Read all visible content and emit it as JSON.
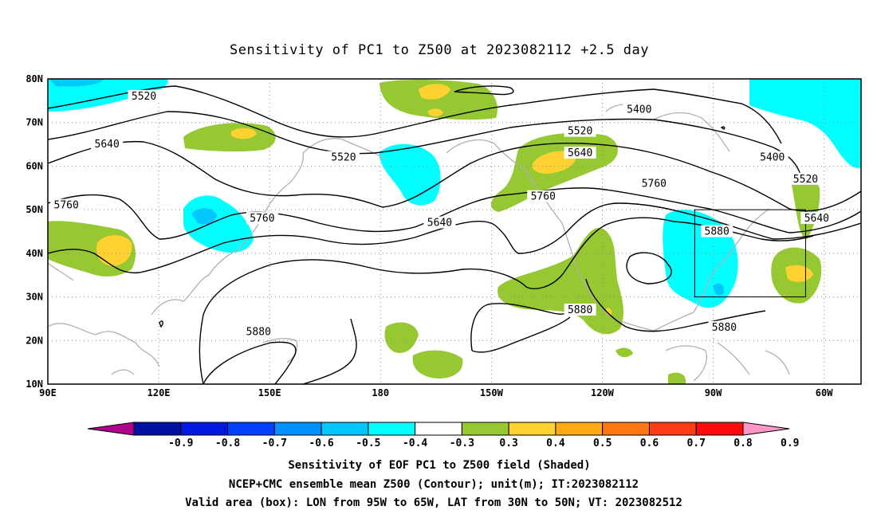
{
  "title": "Sensitivity of PC1 to Z500 at 2023082112 +2.5 day",
  "map": {
    "lon_range": [
      90,
      310
    ],
    "lat_range": [
      10,
      80
    ],
    "x_ticks": [
      {
        "lon": 90,
        "label": "90E"
      },
      {
        "lon": 120,
        "label": "120E"
      },
      {
        "lon": 150,
        "label": "150E"
      },
      {
        "lon": 180,
        "label": "180"
      },
      {
        "lon": 210,
        "label": "150W"
      },
      {
        "lon": 240,
        "label": "120W"
      },
      {
        "lon": 270,
        "label": "90W"
      },
      {
        "lon": 300,
        "label": "60W"
      }
    ],
    "y_ticks": [
      {
        "lat": 10,
        "label": "10N"
      },
      {
        "lat": 20,
        "label": "20N"
      },
      {
        "lat": 30,
        "label": "30N"
      },
      {
        "lat": 40,
        "label": "40N"
      },
      {
        "lat": 50,
        "label": "50N"
      },
      {
        "lat": 60,
        "label": "60N"
      },
      {
        "lat": 70,
        "label": "70N"
      },
      {
        "lat": 80,
        "label": "80N"
      }
    ],
    "grid_dotted": true,
    "valid_box": {
      "lon_min": 265,
      "lon_max": 295,
      "lat_min": 30,
      "lat_max": 50
    },
    "contour_labels": [
      {
        "text": "5520",
        "lon": 116,
        "lat": 76
      },
      {
        "text": "5400",
        "lon": 250,
        "lat": 73
      },
      {
        "text": "5520",
        "lon": 234,
        "lat": 68
      },
      {
        "text": "5640",
        "lon": 106,
        "lat": 65
      },
      {
        "text": "5640",
        "lon": 234,
        "lat": 63
      },
      {
        "text": "5520",
        "lon": 170,
        "lat": 62
      },
      {
        "text": "5400",
        "lon": 286,
        "lat": 62
      },
      {
        "text": "5520",
        "lon": 295,
        "lat": 57
      },
      {
        "text": "5760",
        "lon": 95,
        "lat": 51
      },
      {
        "text": "5760",
        "lon": 148,
        "lat": 48
      },
      {
        "text": "5760",
        "lon": 224,
        "lat": 53
      },
      {
        "text": "5760",
        "lon": 254,
        "lat": 56
      },
      {
        "text": "5640",
        "lon": 196,
        "lat": 47
      },
      {
        "text": "5640",
        "lon": 298,
        "lat": 48
      },
      {
        "text": "5880",
        "lon": 271,
        "lat": 45
      },
      {
        "text": "5880",
        "lon": 234,
        "lat": 27
      },
      {
        "text": "5880",
        "lon": 273,
        "lat": 23
      },
      {
        "text": "5880",
        "lon": 147,
        "lat": 22
      }
    ],
    "contour_levels": [
      5400,
      5520,
      5640,
      5760,
      5880
    ],
    "contour_color": "#000000",
    "coast_color": "#b0b0b0"
  },
  "colorbar": {
    "labels": [
      "-0.9",
      "-0.8",
      "-0.7",
      "-0.6",
      "-0.5",
      "-0.4",
      "-0.3",
      "0.3",
      "0.4",
      "0.5",
      "0.6",
      "0.7",
      "0.8",
      "0.9"
    ],
    "colors": [
      "#b0008c",
      "#0010a0",
      "#0018e0",
      "#0040ff",
      "#0090ff",
      "#00c8ff",
      "#00ffff",
      "#ffffff",
      "#96c832",
      "#ffd232",
      "#ffaa14",
      "#ff7814",
      "#ff3c14",
      "#ff0a0a",
      "#ff96c8"
    ]
  },
  "notes": [
    "Sensitivity of EOF PC1 to Z500 field (Shaded)",
    "NCEP+CMC ensemble mean Z500 (Contour); unit(m); IT:2023082112",
    "Valid area (box): LON from 95W to 65W, LAT from 30N to 50N; VT: 2023082512"
  ]
}
